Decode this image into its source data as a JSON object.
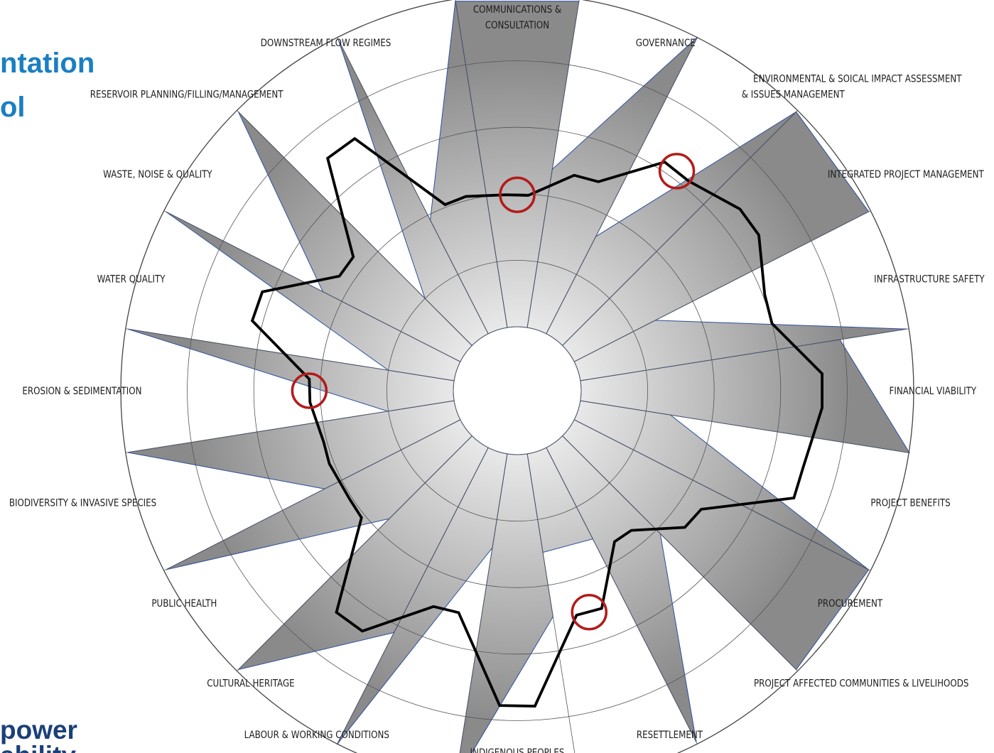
{
  "slide": {
    "title_lines": [
      "ntation",
      "ol"
    ],
    "logo_lines": [
      "power",
      "ability"
    ]
  },
  "colors": {
    "title": "#1a7fc1",
    "logo": "#1b3f78",
    "area_fill": "#8c8c8c",
    "area_edge": "#2b4f9e",
    "assessment_line": "#000000",
    "highlight_circle": "#b31b1b",
    "grid": "#555555"
  },
  "chart_data": {
    "type": "radar",
    "title": "",
    "rings": 5,
    "max": 5,
    "grid": true,
    "axes": [
      {
        "lines": [
          "COMMUNICATIONS &",
          "CONSULTATION"
        ]
      },
      {
        "lines": [
          "GOVERNANCE"
        ]
      },
      {
        "lines": [
          "ENVIRONMENTAL & SOICAL IMPACT ASSESSMENT",
          "& ISSUES MANAGEMENT"
        ]
      },
      {
        "lines": [
          "INTEGRATED PROJECT MANAGEMENT"
        ]
      },
      {
        "lines": [
          "INFRASTRUCTURE SAFETY"
        ]
      },
      {
        "lines": [
          "FINANCIAL VIABILITY"
        ]
      },
      {
        "lines": [
          "PROJECT BENEFITS"
        ]
      },
      {
        "lines": [
          "PROCUREMENT"
        ]
      },
      {
        "lines": [
          "PROJECT AFFECTED COMMUNITIES & LIVELIHOODS"
        ]
      },
      {
        "lines": [
          "RESETTLEMENT"
        ]
      },
      {
        "lines": [
          "INDIGENOUS PEOPLES"
        ]
      },
      {
        "lines": [
          "LABOUR & WORKING CONDITIONS"
        ]
      },
      {
        "lines": [
          "CULTURAL HERITAGE"
        ]
      },
      {
        "lines": [
          "PUBLIC HEALTH"
        ]
      },
      {
        "lines": [
          "BIODIVERSITY & INVASIVE SPECIES"
        ]
      },
      {
        "lines": [
          "EROSION & SEDIMENTATION"
        ]
      },
      {
        "lines": [
          "WATER QUALITY"
        ]
      },
      {
        "lines": [
          "WASTE, NOISE & QUALITY"
        ]
      },
      {
        "lines": [
          "RESERVOIR PLANNING/FILLING/MANAGEMENT"
        ]
      },
      {
        "lines": [
          "DOWNSTREAM FLOW REGIMES"
        ]
      }
    ],
    "series": [
      {
        "kind": "area",
        "points": [
          [
            4.97,
            4.97
          ],
          [
            2.41,
            5.01
          ],
          [
            1.64,
            4.97
          ],
          [
            4.97,
            4.97
          ],
          [
            1.37,
            4.97
          ],
          [
            3.95,
            5.01
          ],
          [
            1.37,
            4.97
          ],
          [
            4.97,
            4.97
          ],
          [
            2.08,
            4.97
          ],
          [
            1.54,
            1.5
          ],
          [
            2.48,
            4.97
          ],
          [
            1.43,
            5.01
          ],
          [
            3.12,
            4.97
          ],
          [
            1.76,
            4.97
          ],
          [
            2.29,
            4.97
          ],
          [
            1.01,
            4.97
          ],
          [
            1.0,
            4.97
          ],
          [
            2.32,
            4.97
          ],
          [
            1.0,
            4.97
          ],
          [
            1.92,
            4.98
          ]
        ]
      },
      {
        "kind": "line",
        "points": [
          [
            1.99,
            1.98
          ],
          [
            2.39,
            2.41
          ],
          [
            3.13,
            3.11
          ],
          [
            3.36,
            3.36
          ],
          [
            3.03,
            3.0
          ],
          [
            3.63,
            3.63
          ],
          [
            3.49,
            3.5
          ],
          [
            2.33,
            2.29
          ],
          [
            1.75,
            1.74
          ],
          [
            2.55,
            2.53
          ],
          [
            3.79,
            3.78
          ],
          [
            2.49,
            2.52
          ],
          [
            3.34,
            3.34
          ],
          [
            2.06,
            2.04
          ],
          [
            2.07,
            2.05
          ],
          [
            2.16,
            2.17
          ],
          [
            3.16,
            3.15
          ],
          [
            2.22,
            2.22
          ],
          [
            3.55,
            3.55
          ],
          [
            2.04,
            2.06
          ]
        ]
      }
    ],
    "highlighted_axes": [
      0,
      2,
      9,
      15
    ]
  }
}
